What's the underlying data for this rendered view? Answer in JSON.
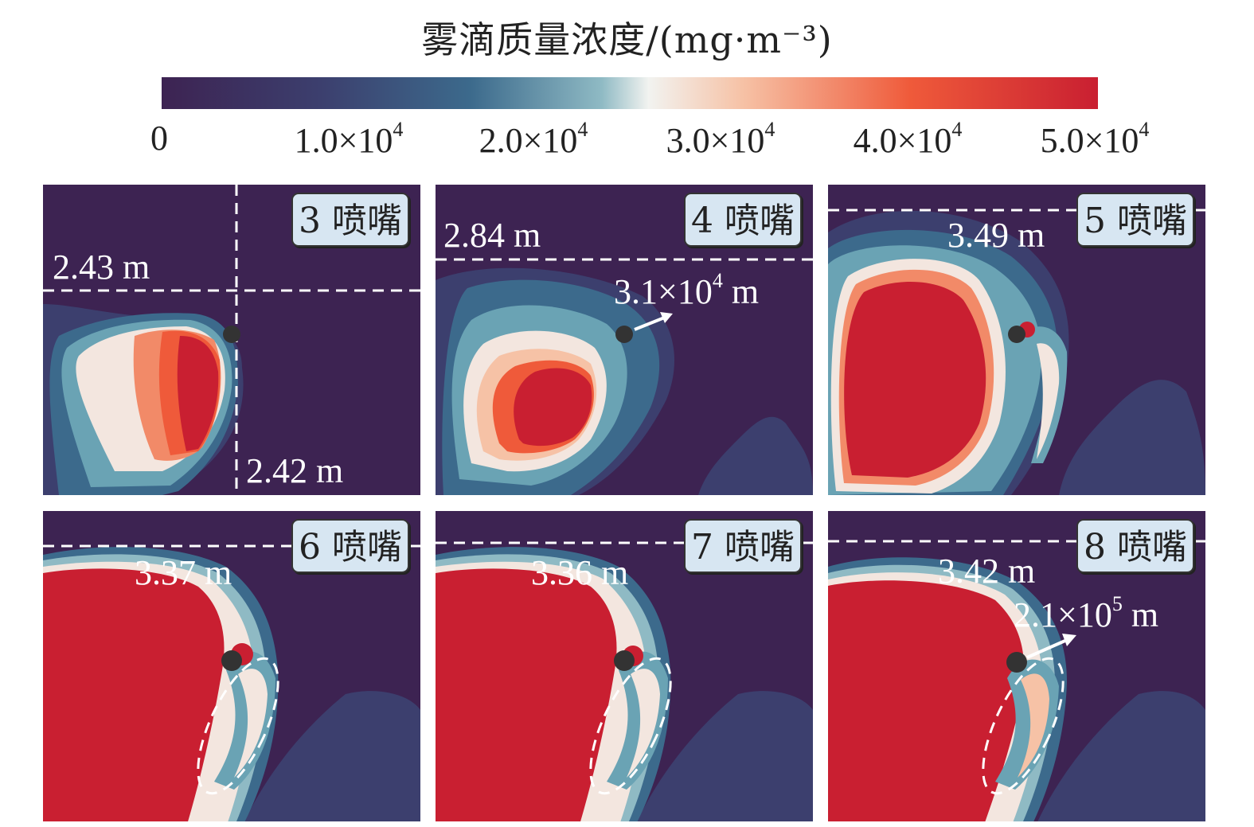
{
  "colorbar": {
    "title": "雾滴质量浓度/(mg·m⁻³)",
    "ticks": [
      {
        "value": "0",
        "exp": ""
      },
      {
        "value": "1.0×10",
        "exp": "4"
      },
      {
        "value": "2.0×10",
        "exp": "4"
      },
      {
        "value": "3.0×10",
        "exp": "4"
      },
      {
        "value": "4.0×10",
        "exp": "4"
      },
      {
        "value": "5.0×10",
        "exp": "4"
      }
    ],
    "colors": [
      "#3d2352",
      "#3c3f6e",
      "#3c6a8c",
      "#6aa3b4",
      "#eaf0f0",
      "#f6c2a6",
      "#ef5a3a",
      "#c91f31"
    ]
  },
  "chart_data": {
    "type": "heatmap",
    "title": "雾滴质量浓度/(mg·m⁻³)",
    "value_range": [
      0,
      50000
    ],
    "colorbar_ticks": [
      0,
      10000,
      20000,
      30000,
      40000,
      50000
    ],
    "panels": [
      {
        "label": "3 喷嘴",
        "annotations": [
          "2.43 m",
          "2.42 m"
        ],
        "arrow": ""
      },
      {
        "label": "4 喷嘴",
        "annotations": [
          "2.84 m"
        ],
        "arrow_label": "3.1×10",
        "arrow_exp": "4",
        "arrow_unit": " m"
      },
      {
        "label": "5 喷嘴",
        "annotations": [
          "3.49 m"
        ],
        "arrow": ""
      },
      {
        "label": "6 喷嘴",
        "annotations": [
          "3.37 m"
        ],
        "arrow": ""
      },
      {
        "label": "7 喷嘴",
        "annotations": [
          "3.36 m"
        ],
        "arrow": ""
      },
      {
        "label": "8 喷嘴",
        "annotations": [
          "3.42 m"
        ],
        "arrow_label": "2.1×10",
        "arrow_exp": "5",
        "arrow_unit": " m"
      }
    ]
  }
}
